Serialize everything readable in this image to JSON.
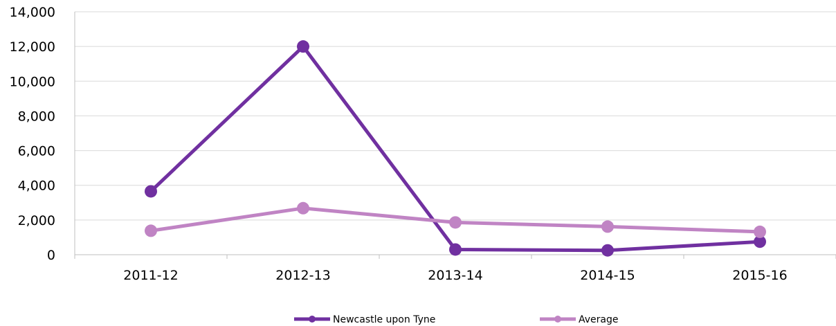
{
  "chart_data": {
    "type": "line",
    "title": "",
    "xlabel": "",
    "ylabel": "",
    "categories": [
      "2011-12",
      "2012-13",
      "2013-14",
      "2014-15",
      "2015-16"
    ],
    "ylim": [
      0,
      14000
    ],
    "yticks": [
      0,
      2000,
      4000,
      6000,
      8000,
      10000,
      12000,
      14000
    ],
    "ytick_labels": [
      "0",
      "2,000",
      "4,000",
      "6,000",
      "8,000",
      "10,000",
      "12,000",
      "14,000"
    ],
    "grid": true,
    "legend_position": "bottom",
    "series": [
      {
        "name": "Newcastle upon Tyne",
        "color": "#7030a0",
        "values": [
          3650,
          12000,
          300,
          250,
          750
        ]
      },
      {
        "name": "Average",
        "color": "#c084c4",
        "values": [
          1380,
          2680,
          1860,
          1620,
          1320
        ]
      }
    ]
  }
}
